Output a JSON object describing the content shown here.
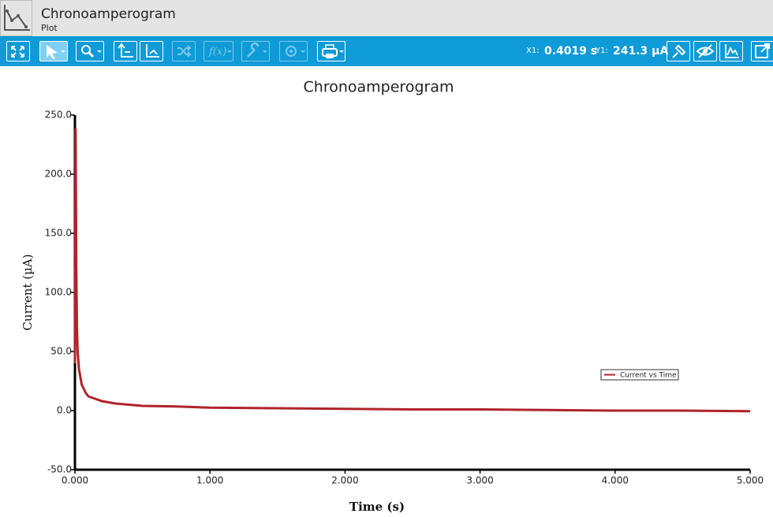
{
  "header": {
    "title": "Chronoamperogram",
    "subtitle": "Plot"
  },
  "toolbar": {
    "x_label": "X1:",
    "x_value": "0.4019 s",
    "y_label": "Y1:",
    "y_value": "241.3 µA"
  },
  "chart_data": {
    "type": "line",
    "title": "Chronoamperogram",
    "x_label": "Time (s)",
    "y_label": "Current (µA)",
    "x": [
      0.0,
      0.005,
      0.01,
      0.015,
      0.02,
      0.03,
      0.05,
      0.08,
      0.1,
      0.15,
      0.2,
      0.3,
      0.4,
      0.5,
      0.75,
      1.0,
      1.5,
      2.0,
      2.5,
      3.0,
      3.5,
      4.0,
      4.5,
      5.0
    ],
    "series": [
      {
        "name": "Current vs Time",
        "color": "#b0232a",
        "values": [
          40,
          238,
          120,
          70,
          50,
          35,
          22,
          15,
          12,
          10,
          8,
          6,
          5,
          4,
          3.5,
          2.5,
          2,
          1.5,
          1,
          1,
          0.5,
          0,
          0,
          -0.5
        ]
      }
    ],
    "xlim": [
      0,
      5
    ],
    "ylim": [
      -50,
      250
    ],
    "xticks": [
      {
        "value": 0,
        "label": "0.000"
      },
      {
        "value": 1,
        "label": "1.000"
      },
      {
        "value": 2,
        "label": "2.000"
      },
      {
        "value": 3,
        "label": "3.000"
      },
      {
        "value": 4,
        "label": "4.000"
      },
      {
        "value": 5,
        "label": "5.000"
      }
    ],
    "yticks": [
      {
        "value": -50,
        "label": "-50.0"
      },
      {
        "value": 0,
        "label": "0.0"
      },
      {
        "value": 50,
        "label": "50.0"
      },
      {
        "value": 100,
        "label": "100.0"
      },
      {
        "value": 150,
        "label": "150.0"
      },
      {
        "value": 200,
        "label": "200.0"
      },
      {
        "value": 250,
        "label": "250.0"
      }
    ],
    "grid": false,
    "legend": "right"
  }
}
